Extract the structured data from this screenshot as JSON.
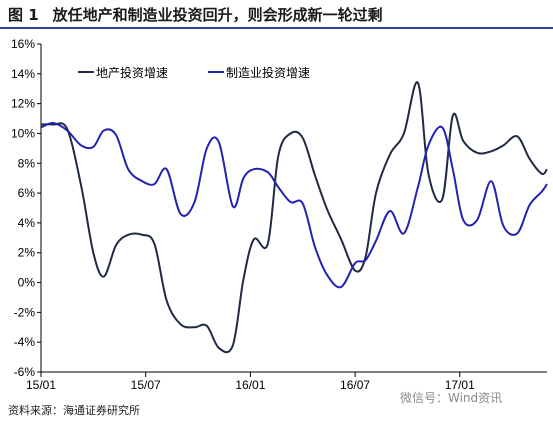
{
  "figure": {
    "label": "图 1",
    "title": "放任地产和制造业投资回升，则会形成新一轮过剩"
  },
  "source": "资料来源：海通证券研究所",
  "watermark": "微信号：Wind资讯",
  "chart_data": {
    "type": "line",
    "ylim": [
      -6,
      16
    ],
    "yticks": [
      "-6%",
      "-4%",
      "-2%",
      "0%",
      "2%",
      "4%",
      "6%",
      "8%",
      "10%",
      "12%",
      "14%",
      "16%"
    ],
    "ytick_values": [
      -6,
      -4,
      -2,
      0,
      2,
      4,
      6,
      8,
      10,
      12,
      14,
      16
    ],
    "xticks": [
      "15/01",
      "15/07",
      "16/01",
      "16/07",
      "17/01"
    ],
    "xtick_positions": [
      0,
      6,
      12,
      18,
      24
    ],
    "xlim": [
      0,
      29
    ],
    "grid": false,
    "legend_position": "top-left",
    "colors": {
      "real_estate": "#1f2a44",
      "manufacturing": "#2323b0"
    },
    "series": [
      {
        "name": "地产投资增速",
        "x": [
          0,
          0.7,
          1.5,
          2.3,
          3.0,
          3.6,
          4.3,
          5.0,
          5.8,
          6.5,
          7.2,
          8.0,
          8.8,
          9.5,
          10.2,
          11.0,
          11.6,
          12.2,
          13.0,
          13.6,
          14.3,
          15.0,
          15.7,
          16.4,
          17.2,
          18.0,
          18.6,
          19.2,
          20.0,
          20.8,
          21.6,
          22.2,
          23.0,
          23.6,
          24.2,
          25.0,
          25.8,
          26.5,
          27.3,
          28.0,
          28.7,
          29.0
        ],
        "values": [
          10.6,
          10.6,
          10.3,
          6.5,
          2.0,
          0.4,
          2.5,
          3.2,
          3.2,
          2.6,
          -1.2,
          -2.8,
          -3.0,
          -2.9,
          -4.4,
          -4.2,
          0.2,
          2.9,
          2.6,
          8.5,
          10.0,
          9.7,
          7.2,
          4.9,
          2.9,
          0.8,
          1.7,
          6.0,
          8.6,
          10.0,
          13.4,
          7.3,
          5.6,
          11.2,
          9.5,
          8.7,
          8.8,
          9.2,
          9.8,
          8.3,
          7.3,
          7.6
        ]
      },
      {
        "name": "制造业投资增速",
        "x": [
          0,
          0.7,
          1.5,
          2.3,
          3.0,
          3.6,
          4.3,
          5.0,
          5.8,
          6.5,
          7.2,
          8.0,
          8.8,
          9.5,
          10.2,
          11.0,
          11.6,
          12.2,
          13.0,
          13.6,
          14.3,
          15.0,
          15.7,
          16.4,
          17.2,
          18.0,
          18.6,
          19.2,
          20.0,
          20.8,
          21.6,
          22.2,
          23.0,
          23.6,
          24.2,
          25.0,
          25.8,
          26.5,
          27.3,
          28.0,
          28.7,
          29.0
        ],
        "values": [
          10.4,
          10.7,
          10.2,
          9.2,
          9.1,
          10.2,
          9.9,
          7.6,
          6.8,
          6.6,
          7.6,
          4.6,
          5.4,
          9.0,
          9.4,
          5.1,
          7.0,
          7.6,
          7.4,
          6.4,
          5.4,
          5.3,
          2.4,
          0.5,
          -0.3,
          1.3,
          1.5,
          2.8,
          4.8,
          3.3,
          6.4,
          9.2,
          10.4,
          7.6,
          4.2,
          4.2,
          6.8,
          3.8,
          3.3,
          5.2,
          6.1,
          6.6
        ]
      }
    ]
  }
}
